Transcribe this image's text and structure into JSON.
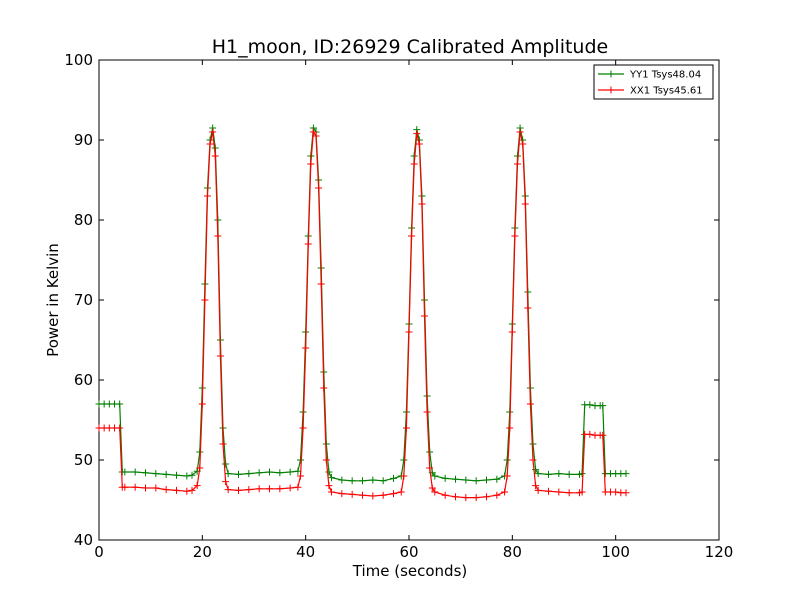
{
  "chart_data": {
    "type": "line",
    "title": "H1_moon, ID:26929 Calibrated Amplitude",
    "xlabel": "Time (seconds)",
    "ylabel": "Power in Kelvin",
    "xlim": [
      0,
      120
    ],
    "ylim": [
      40,
      100
    ],
    "xticks": [
      0,
      20,
      40,
      60,
      80,
      100,
      120
    ],
    "yticks": [
      40,
      50,
      60,
      70,
      80,
      90,
      100
    ],
    "grid": false,
    "legend_position": "top-right",
    "marker": "+",
    "x": [
      0,
      1,
      2,
      3,
      4,
      4.5,
      5,
      7,
      9,
      11,
      13,
      15,
      17,
      18,
      19,
      19.5,
      20,
      20.5,
      21,
      21.5,
      22,
      22.5,
      23,
      23.5,
      24,
      24.5,
      25,
      27,
      29,
      31,
      33,
      35,
      37,
      38.5,
      39,
      39.5,
      40,
      40.5,
      41,
      41.5,
      42,
      42.5,
      43,
      43.5,
      44,
      44.5,
      45,
      47,
      49,
      51,
      53,
      55,
      57,
      58.5,
      59,
      59.5,
      60,
      60.5,
      61,
      61.5,
      62,
      62.5,
      63,
      63.5,
      64,
      64.5,
      65,
      67,
      69,
      71,
      73,
      75,
      77,
      78.5,
      79,
      79.5,
      80,
      80.5,
      81,
      81.5,
      82,
      82.5,
      83,
      83.5,
      84,
      84.5,
      85,
      87,
      89,
      91,
      93,
      93.5,
      94,
      95,
      96,
      97,
      97.5,
      98,
      99,
      100,
      101,
      102
    ],
    "series": [
      {
        "name": "YY1 Tsys48.04",
        "color": "#008000",
        "values": [
          57,
          57,
          57,
          57,
          57,
          48.5,
          48.5,
          48.5,
          48.4,
          48.3,
          48.2,
          48.1,
          48.0,
          48.1,
          48.6,
          51,
          59,
          72,
          84,
          90,
          91.5,
          89,
          80,
          65,
          54,
          49.5,
          48.3,
          48.2,
          48.3,
          48.4,
          48.5,
          48.4,
          48.5,
          48.6,
          50,
          56,
          66,
          78,
          88,
          91.5,
          91,
          85,
          74,
          61,
          52,
          48.5,
          47.8,
          47.5,
          47.4,
          47.4,
          47.5,
          47.4,
          47.7,
          48.0,
          50,
          56,
          67,
          79,
          88,
          91.3,
          90,
          83,
          70,
          58,
          51,
          48.4,
          48.0,
          47.7,
          47.6,
          47.5,
          47.4,
          47.5,
          47.6,
          48.0,
          50,
          56,
          67,
          79,
          88,
          91.5,
          90,
          83,
          71,
          59,
          52,
          48.8,
          48.3,
          48.2,
          48.3,
          48.2,
          48.2,
          48.3,
          56.9,
          56.9,
          56.8,
          56.8,
          56.8,
          48.3,
          48.3,
          48.3,
          48.3,
          48.3
        ]
      },
      {
        "name": "XX1 Tsys45.61",
        "color": "#ff0000",
        "values": [
          54,
          54,
          54,
          54,
          54,
          46.6,
          46.6,
          46.6,
          46.5,
          46.5,
          46.3,
          46.2,
          46.1,
          46.2,
          46.8,
          49,
          57,
          70,
          83,
          89.5,
          91,
          88,
          78,
          63,
          52,
          47.3,
          46.3,
          46.2,
          46.3,
          46.4,
          46.4,
          46.4,
          46.5,
          46.6,
          48,
          54,
          64,
          77,
          87,
          91,
          90.5,
          84,
          72,
          59,
          50,
          46.8,
          46.0,
          45.8,
          45.7,
          45.6,
          45.5,
          45.6,
          45.8,
          46.0,
          48,
          54,
          66,
          78,
          87,
          90.8,
          89.5,
          82,
          68,
          56,
          49,
          46.5,
          46.0,
          45.6,
          45.4,
          45.3,
          45.3,
          45.4,
          45.6,
          46.0,
          48,
          54,
          66,
          78,
          87,
          91,
          89.5,
          82,
          69,
          57,
          50,
          46.8,
          46.2,
          46.1,
          46.0,
          45.9,
          45.9,
          46.0,
          53.2,
          53.2,
          53.1,
          53.1,
          53.1,
          46.0,
          46.0,
          46.0,
          45.9,
          45.9
        ]
      }
    ]
  }
}
